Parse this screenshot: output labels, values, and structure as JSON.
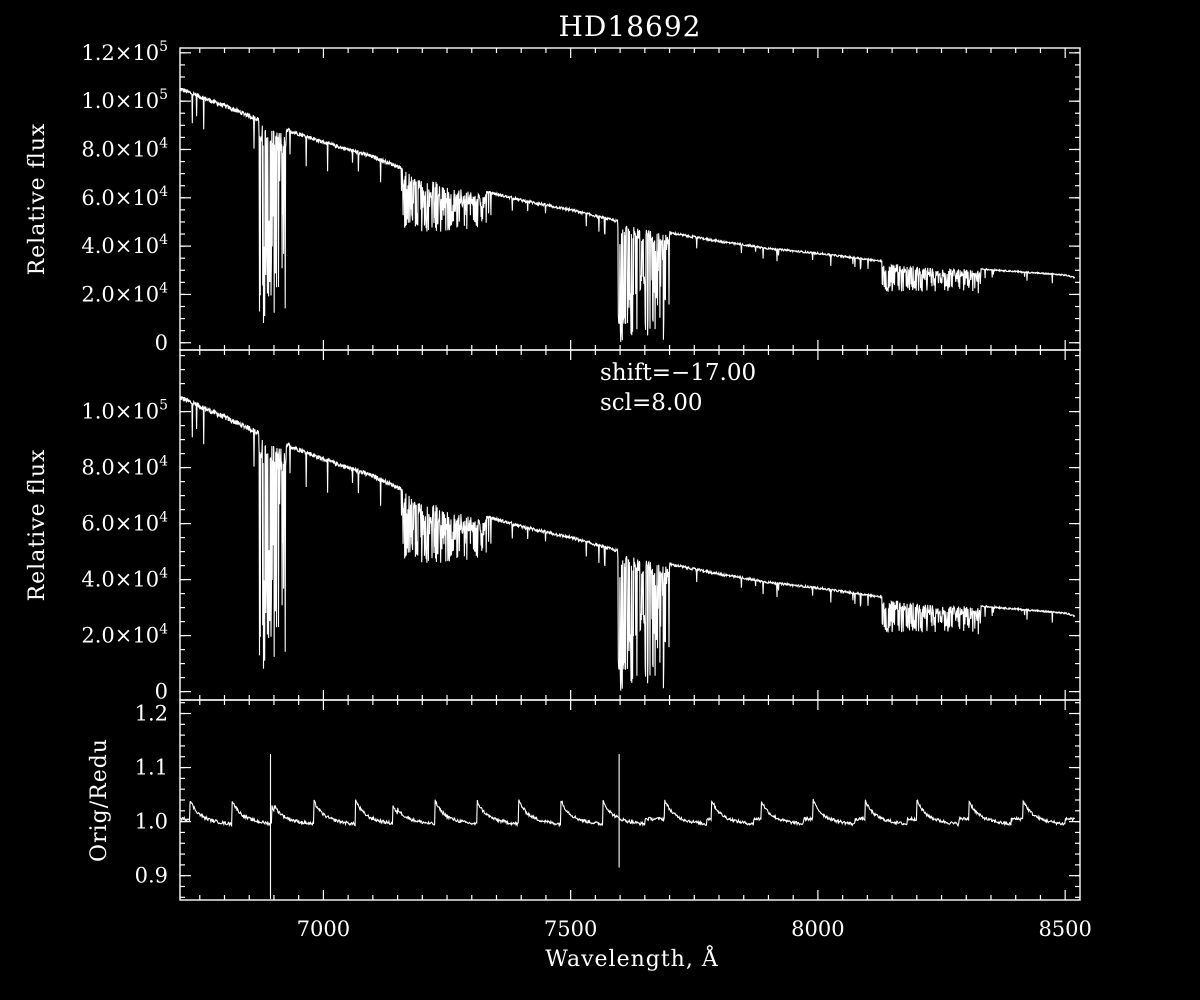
{
  "chart_data": {
    "type": "line",
    "title": "HD18692",
    "xlabel": "Wavelength, Å",
    "xlim": [
      6710,
      8530
    ],
    "x_ticks": [
      7000,
      7500,
      8000,
      8500
    ],
    "x_tick_labels": [
      "7000",
      "7500",
      "8000",
      "8500"
    ],
    "panels": [
      {
        "id": "top",
        "ylabel": "Relative flux",
        "ylim": [
          -3000,
          122000
        ],
        "y_ticks": [
          0,
          20000,
          40000,
          60000,
          80000,
          100000,
          120000
        ],
        "y_tick_labels": [
          {
            "mant": "0",
            "exp": ""
          },
          {
            "mant": "2.0×10",
            "exp": "4"
          },
          {
            "mant": "4.0×10",
            "exp": "4"
          },
          {
            "mant": "6.0×10",
            "exp": "4"
          },
          {
            "mant": "8.0×10",
            "exp": "4"
          },
          {
            "mant": "1.0×10",
            "exp": "5"
          },
          {
            "mant": "1.2×10",
            "exp": "5"
          }
        ],
        "continuum": {
          "x": [
            6710,
            6800,
            6900,
            7000,
            7100,
            7200,
            7300,
            7400,
            7500,
            7600,
            7700,
            7800,
            7900,
            8000,
            8100,
            8200,
            8300,
            8400,
            8500,
            8520
          ],
          "y": [
            105000,
            98000,
            90000,
            83000,
            77000,
            69000,
            64000,
            59000,
            55000,
            50000,
            45500,
            42000,
            39000,
            37000,
            34500,
            32000,
            31000,
            29500,
            28000,
            27000
          ]
        },
        "absorption_bands": [
          {
            "from": 6870,
            "to": 6925,
            "min": 3000
          },
          {
            "from": 7160,
            "to": 7330,
            "min": 46000
          },
          {
            "from": 7595,
            "to": 7700,
            "min": 0
          },
          {
            "from": 8130,
            "to": 8330,
            "min": 21000
          }
        ]
      },
      {
        "id": "middle",
        "ylabel": "Relative flux",
        "ylim": [
          -3000,
          122000
        ],
        "y_ticks": [
          0,
          20000,
          40000,
          60000,
          80000,
          100000
        ],
        "y_tick_labels": [
          {
            "mant": "0",
            "exp": ""
          },
          {
            "mant": "2.0×10",
            "exp": "4"
          },
          {
            "mant": "4.0×10",
            "exp": "4"
          },
          {
            "mant": "6.0×10",
            "exp": "4"
          },
          {
            "mant": "8.0×10",
            "exp": "4"
          },
          {
            "mant": "1.0×10",
            "exp": "5"
          }
        ],
        "annotations": [
          "shift=−17.00",
          "scl=8.00"
        ]
      },
      {
        "id": "bottom",
        "ylabel": "Orig/Redu",
        "ylim": [
          0.855,
          1.225
        ],
        "y_ticks": [
          0.9,
          1.0,
          1.1,
          1.2
        ],
        "y_tick_labels": [
          "0.9",
          "1.0",
          "1.1",
          "1.2"
        ],
        "ratio_spikes_x": [
          6730,
          6815,
          6895,
          6980,
          7065,
          7140,
          7225,
          7310,
          7395,
          7480,
          7565,
          7690,
          7785,
          7885,
          7990,
          8095,
          8200,
          8305,
          8415
        ],
        "spike_peaks": [
          {
            "x": 6893,
            "high": 1.125,
            "low": 0.857
          },
          {
            "x": 7598,
            "high": 1.125,
            "low": 0.915
          }
        ]
      }
    ]
  }
}
